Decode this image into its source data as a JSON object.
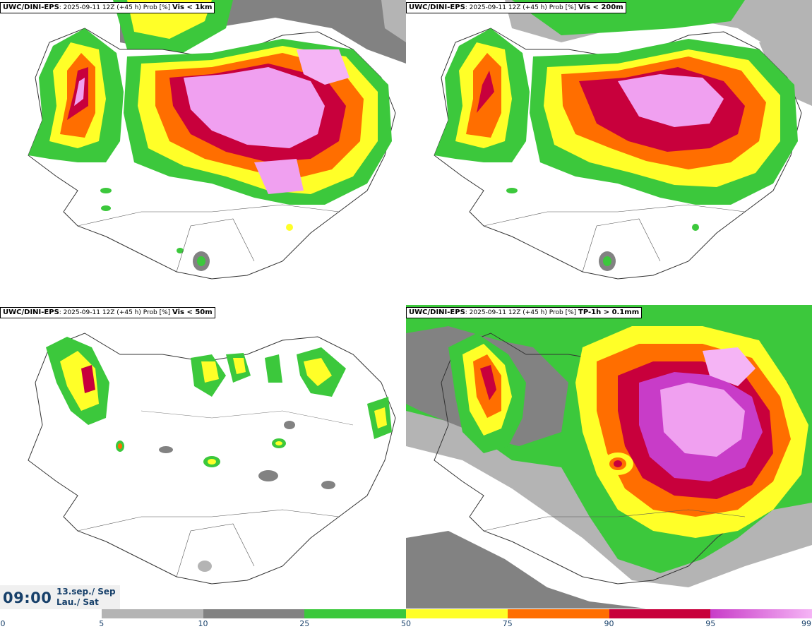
{
  "panels": [
    {
      "model": "UWC/DINI-EPS",
      "run": ": 2025-09-11 12Z (+45 h) Prob [%]",
      "variable": "Vis < 1km"
    },
    {
      "model": "UWC/DINI-EPS",
      "run": ": 2025-09-11 12Z (+45 h) Prob [%]",
      "variable": "Vis < 200m"
    },
    {
      "model": "UWC/DINI-EPS",
      "run": ": 2025-09-11 12Z (+45 h) Prob [%]",
      "variable": "Vis < 50m"
    },
    {
      "model": "UWC/DINI-EPS",
      "run": ": 2025-09-11 12Z (+45 h) Prob [%]",
      "variable": "TP-1h > 0.1mm"
    }
  ],
  "time": {
    "clock": "09:00",
    "date_line1": "13.sep./ Sep",
    "date_line2": "Lau./ Sat"
  },
  "legend": {
    "ticks": [
      "0",
      "5",
      "10",
      "25",
      "50",
      "75",
      "90",
      "95",
      "99"
    ],
    "bands": [
      {
        "from": 0,
        "to": 5,
        "color": "#ffffff"
      },
      {
        "from": 5,
        "to": 10,
        "color": "#b4b4b4"
      },
      {
        "from": 10,
        "to": 25,
        "color": "#828282"
      },
      {
        "from": 25,
        "to": 50,
        "color": "#3cc83c"
      },
      {
        "from": 50,
        "to": 75,
        "color": "#ffff28"
      },
      {
        "from": 75,
        "to": 90,
        "color": "#ff6e00"
      },
      {
        "from": 90,
        "to": 95,
        "color": "#c8003c"
      },
      {
        "from": 95,
        "to": 99,
        "color": "#c83cc8",
        "gradient_to": "#f5b4f5"
      }
    ]
  }
}
